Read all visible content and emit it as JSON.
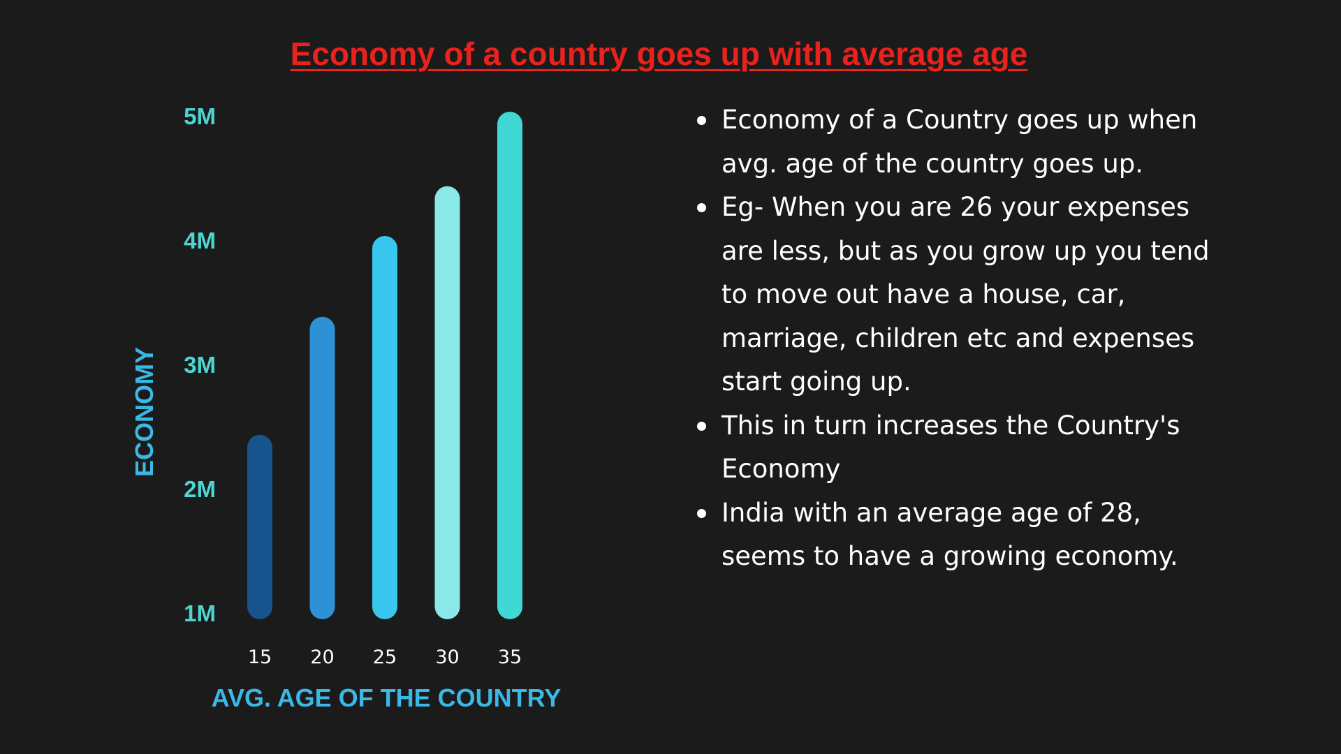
{
  "title": "Economy of a country goes up with average  age",
  "bullets": [
    "Economy of a Country goes up when avg. age of the country goes up.",
    "Eg- When you are 26 your expenses are less, but as you grow up you tend to move out have a house, car, marriage, children etc and  expenses start going up.",
    "This in turn increases the Country's Economy",
    "India with an average age of 28, seems to have a growing economy."
  ],
  "colors": {
    "background": "#1b1b1b",
    "title": "#e8221d",
    "axis_label": "#3ab8e6",
    "tick_label": "#4cd6d2",
    "bars": [
      "#17538c",
      "#2e91d6",
      "#38c6ee",
      "#8ae9e8",
      "#3fd8d5"
    ]
  },
  "chart_data": {
    "type": "bar",
    "categories": [
      "15",
      "20",
      "25",
      "30",
      "35"
    ],
    "values": [
      2.4,
      3.35,
      4.0,
      4.4,
      5.0
    ],
    "ylim": [
      1,
      5
    ],
    "yticks": [
      "1M",
      "2M",
      "3M",
      "4M",
      "5M"
    ],
    "ytick_values": [
      1,
      2,
      3,
      4,
      5
    ],
    "xlabel": "AVG. AGE OF THE COUNTRY",
    "ylabel": "ECONOMY",
    "grid": false,
    "legend": "none"
  }
}
